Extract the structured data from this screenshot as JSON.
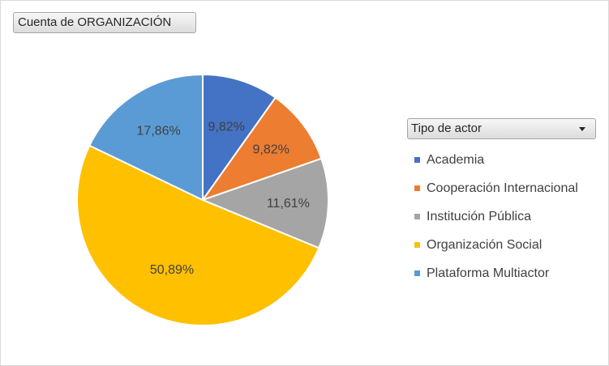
{
  "field_button": {
    "label": "Cuenta de ORGANIZACIÓN"
  },
  "legend_filter": {
    "label": "Tipo de actor"
  },
  "chart_data": {
    "type": "pie",
    "title": "",
    "categories": [
      "Academia",
      "Cooperación Internacional",
      "Institución Pública",
      "Organización Social",
      "Plataforma Multiactor"
    ],
    "values": [
      9.82,
      9.82,
      11.61,
      50.89,
      17.86
    ],
    "labels": [
      "9,82%",
      "9,82%",
      "11,61%",
      "50,89%",
      "17,86%"
    ],
    "colors": [
      "#4472c4",
      "#ed7d31",
      "#a5a5a5",
      "#ffc000",
      "#5b9bd5"
    ],
    "start_angle": "12 o'clock, clockwise",
    "legend_position": "right"
  }
}
